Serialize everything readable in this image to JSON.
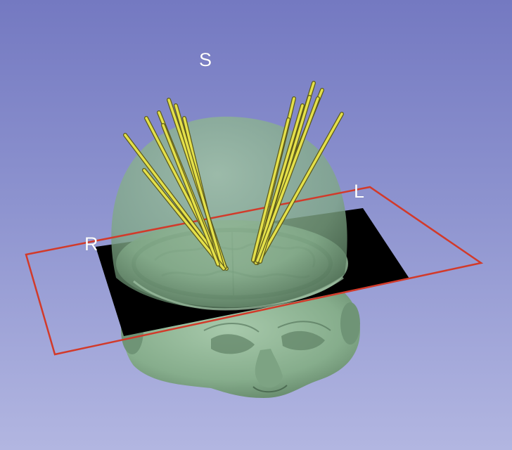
{
  "viewer": {
    "background_top": "#7479c1",
    "background_bottom": "#b2b6e1",
    "orientation_labels": {
      "superior": "S",
      "left": "L",
      "right": "R"
    }
  },
  "scene": {
    "head_surface_color": "#8fb896",
    "slice_plane_color": "#000000",
    "slice_frame_color": "#d23a2a",
    "electrode_color": "#e4e04a",
    "electrode_count": 16
  }
}
